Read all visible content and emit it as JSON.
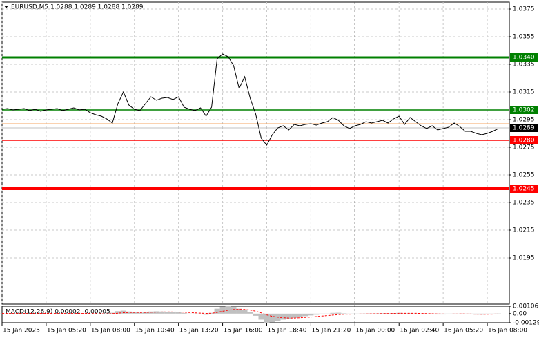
{
  "chart_data": [
    {
      "type": "line",
      "title": "EURUSD,M5  1.0288 1.0289 1.0288 1.0289",
      "xlim": [
        0,
        92
      ],
      "xticks": [
        {
          "value": 0,
          "label": "15 Jan 2025"
        },
        {
          "value": 8,
          "label": "15 Jan 05:20"
        },
        {
          "value": 16,
          "label": "15 Jan 08:00"
        },
        {
          "value": 24,
          "label": "15 Jan 10:40"
        },
        {
          "value": 32,
          "label": "15 Jan 13:20"
        },
        {
          "value": 40,
          "label": "15 Jan 16:00"
        },
        {
          "value": 48,
          "label": "15 Jan 18:40"
        },
        {
          "value": 56,
          "label": "15 Jan 21:20"
        },
        {
          "value": 64,
          "label": "16 Jan 00:00"
        },
        {
          "value": 72,
          "label": "16 Jan 02:40"
        },
        {
          "value": 80,
          "label": "16 Jan 05:20"
        },
        {
          "value": 88,
          "label": "16 Jan 08:00"
        }
      ],
      "separators": [
        64
      ],
      "ylim": [
        1.01615,
        1.038
      ],
      "yticks": [
        1.0375,
        1.0355,
        1.0335,
        1.0315,
        1.0295,
        1.0275,
        1.0255,
        1.0235,
        1.0215,
        1.0195
      ],
      "grid": true,
      "color": "#000000",
      "values": [
        1.03025,
        1.0303,
        1.0302,
        1.03025,
        1.0303,
        1.03015,
        1.03025,
        1.0301,
        1.0302,
        1.03025,
        1.0303,
        1.03015,
        1.03025,
        1.03035,
        1.0302,
        1.03025,
        1.03,
        1.02985,
        1.02975,
        1.02955,
        1.02925,
        1.03065,
        1.0315,
        1.03055,
        1.03025,
        1.03015,
        1.03065,
        1.03115,
        1.0309,
        1.03105,
        1.0311,
        1.03095,
        1.03115,
        1.0304,
        1.03025,
        1.03015,
        1.03035,
        1.02975,
        1.0304,
        1.0339,
        1.03425,
        1.03405,
        1.0334,
        1.03175,
        1.0326,
        1.03105,
        1.0299,
        1.02815,
        1.02765,
        1.0284,
        1.0289,
        1.02905,
        1.02875,
        1.02915,
        1.02905,
        1.02915,
        1.0292,
        1.0291,
        1.02925,
        1.02935,
        1.02965,
        1.02945,
        1.02905,
        1.02885,
        1.02905,
        1.02915,
        1.02935,
        1.02925,
        1.02935,
        1.02945,
        1.02925,
        1.02955,
        1.02975,
        1.02915,
        1.02965,
        1.02935,
        1.02905,
        1.02885,
        1.02905,
        1.02875,
        1.02885,
        1.02895,
        1.02925,
        1.029,
        1.02865,
        1.02865,
        1.0285,
        1.0284,
        1.0285,
        1.02865,
        1.02885
      ],
      "levels": [
        {
          "value": 1.034,
          "label": "1.0340",
          "color": "#008000",
          "width": 3
        },
        {
          "value": 1.0302,
          "label": "1.0302",
          "color": "#008000",
          "width": 1.5
        },
        {
          "value": 1.028,
          "label": "1.0280",
          "color": "#ff0000",
          "width": 1.5
        },
        {
          "value": 1.0245,
          "label": "1.0245",
          "color": "#ff0000",
          "width": 4
        }
      ],
      "ask_line": {
        "value": 1.0292,
        "color": "#f4a460"
      },
      "bid": {
        "value": 1.0289,
        "label": "1.0289",
        "color": "#c0c0c0"
      }
    },
    {
      "type": "macd",
      "title": "MACD(12,26,9) 0.00002 -0.00005",
      "ylim": [
        -0.00129,
        0.00106
      ],
      "yticks": [
        0.00106,
        {
          "value": 0,
          "label": "0.00"
        },
        -0.00129
      ],
      "color": "#c0c0c0",
      "signal_color": "#ff0000",
      "values": [
        2e-05,
        3e-05,
        1e-05,
        2e-05,
        4e-05,
        2e-05,
        1e-05,
        3e-05,
        2e-05,
        1e-05,
        3e-05,
        2e-05,
        4e-05,
        5e-05,
        2e-05,
        1e-05,
        -3e-05,
        -6e-05,
        -8e-05,
        -0.0001,
        0.00012,
        0.00035,
        0.00042,
        0.0003,
        0.00018,
        0.00012,
        0.0002,
        0.0003,
        0.00033,
        0.0003,
        0.00027,
        0.00022,
        0.0002,
        8e-05,
        -2e-05,
        -8e-05,
        -0.0001,
        -0.00015,
        0.0001,
        0.0007,
        0.00098,
        0.00106,
        0.00095,
        0.0007,
        0.00055,
        0.0002,
        -0.0003,
        -0.00085,
        -0.00129,
        -0.0012,
        -0.001,
        -0.00085,
        -0.00075,
        -0.0006,
        -0.00048,
        -0.00035,
        -0.00025,
        -0.00015,
        -8e-05,
        0,
        0.0001,
        0.00012,
        5e-05,
        -5e-05,
        -6e-05,
        -4e-05,
        1e-05,
        2e-05,
        4e-05,
        6e-05,
        5e-05,
        7e-05,
        0.0001,
        4e-05,
        6e-05,
        3e-05,
        -4e-05,
        -8e-05,
        -9e-05,
        -0.00012,
        -0.00012,
        -0.0001,
        -3e-05,
        -2e-05,
        -7e-05,
        -0.0001,
        -0.00013,
        -0.00014,
        -0.0001,
        -5e-05,
        2e-05
      ],
      "signal": [
        2e-05,
        2e-05,
        2e-05,
        2e-05,
        2e-05,
        2e-05,
        2e-05,
        2e-05,
        2e-05,
        2e-05,
        2e-05,
        2e-05,
        2e-05,
        2e-05,
        2e-05,
        2e-05,
        1e-05,
        -1e-05,
        -2e-05,
        -4e-05,
        -1e-05,
        6e-05,
        0.00013,
        0.00016,
        0.00017,
        0.00016,
        0.00017,
        0.0002,
        0.00022,
        0.00024,
        0.00025,
        0.00024,
        0.00023,
        0.0002,
        0.00016,
        0.00011,
        7e-05,
        3e-05,
        5e-05,
        0.00018,
        0.00034,
        0.00048,
        0.00058,
        0.0006,
        0.00059,
        0.00051,
        0.00035,
        0.00011,
        -0.00017,
        -0.00038,
        -0.0005,
        -0.00057,
        -0.00061,
        -0.00061,
        -0.00058,
        -0.00053,
        -0.00047,
        -0.00041,
        -0.00034,
        -0.00027,
        -0.0002,
        -0.00013,
        -9e-05,
        -8e-05,
        -7e-05,
        -6e-05,
        -5e-05,
        -3e-05,
        -2e-05,
        0,
        1e-05,
        2e-05,
        4e-05,
        4e-05,
        4e-05,
        4e-05,
        2e-05,
        0,
        -2e-05,
        -4e-05,
        -6e-05,
        -7e-05,
        -6e-05,
        -5e-05,
        -5e-05,
        -6e-05,
        -8e-05,
        -9e-05,
        -9e-05,
        -8e-05,
        -5e-05
      ]
    }
  ]
}
